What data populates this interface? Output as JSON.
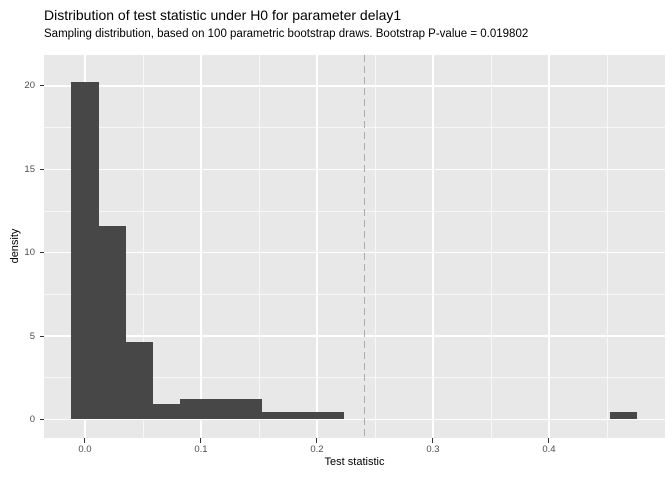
{
  "chart_data": {
    "type": "bar",
    "subtype": "histogram",
    "title": "Distribution of test statistic under H0 for parameter delay1",
    "subtitle": "Sampling distribution, based on 100 parametric bootstrap draws. Bootstrap P-value = 0.019802",
    "xlabel": "Test statistic",
    "ylabel": "density",
    "n_bootstrap_draws": "100",
    "p_value": "0.019802",
    "x_domain": [
      -0.0353,
      0.5
    ],
    "y_domain": [
      -1.11,
      21.85
    ],
    "x_major_ticks": [
      0.0,
      0.1,
      0.2,
      0.3,
      0.4
    ],
    "x_tick_labels": [
      "0.0",
      "0.1",
      "0.2",
      "0.3",
      "0.4"
    ],
    "x_minor_ticks": [
      0.05,
      0.15,
      0.25,
      0.35,
      0.45
    ],
    "y_major_ticks": [
      0,
      5,
      10,
      15,
      20
    ],
    "y_tick_labels": [
      "0",
      "5",
      "10",
      "15",
      "20"
    ],
    "y_minor_ticks": [
      2.5,
      7.5,
      12.5,
      17.5
    ],
    "bins": [
      {
        "x0": -0.0117,
        "x1": 0.0118,
        "density": 20.25
      },
      {
        "x0": 0.0118,
        "x1": 0.0353,
        "density": 11.6
      },
      {
        "x0": 0.0353,
        "x1": 0.0588,
        "density": 4.65
      },
      {
        "x0": 0.0588,
        "x1": 0.0823,
        "density": 0.9
      },
      {
        "x0": 0.0823,
        "x1": 0.1058,
        "density": 1.25
      },
      {
        "x0": 0.1058,
        "x1": 0.1293,
        "density": 1.25
      },
      {
        "x0": 0.1293,
        "x1": 0.1528,
        "density": 1.25
      },
      {
        "x0": 0.1528,
        "x1": 0.1763,
        "density": 0.42
      },
      {
        "x0": 0.1763,
        "x1": 0.1998,
        "density": 0.42
      },
      {
        "x0": 0.1998,
        "x1": 0.2233,
        "density": 0.42
      },
      {
        "x0": 0.4526,
        "x1": 0.4761,
        "density": 0.42
      }
    ],
    "vline_x": 0.2408,
    "grid": true,
    "legend_position": "none",
    "colors": {
      "bar": "#474747",
      "panel_background": "#e8e8e8",
      "gridline": "#ffffff",
      "vline": "#ababab",
      "tick_text": "#4d4d4d",
      "title_text": "#000000"
    }
  }
}
